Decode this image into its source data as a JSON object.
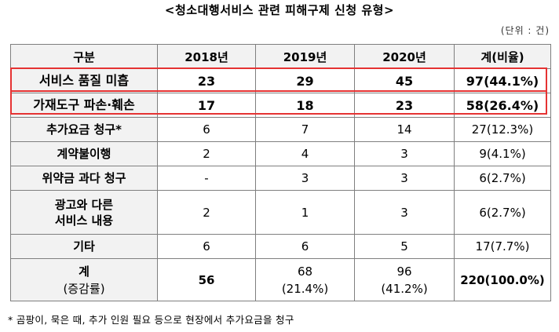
{
  "title": "<청소대행서비스 관련 피해구제 신청 유형>",
  "unit": "(단위 : 건)",
  "table": {
    "headers": [
      "구분",
      "2018년",
      "2019년",
      "2020년",
      "계(비율)"
    ],
    "rows": [
      {
        "label": "서비스 품질 미흡",
        "v2018": "23",
        "v2019": "29",
        "v2020": "45",
        "total": "97(44.1%)"
      },
      {
        "label": "가재도구 파손·훼손",
        "v2018": "17",
        "v2019": "18",
        "v2020": "23",
        "total": "58(26.4%)"
      },
      {
        "label": "추가요금 청구*",
        "v2018": "6",
        "v2019": "7",
        "v2020": "14",
        "total": "27(12.3%)"
      },
      {
        "label": "계약불이행",
        "v2018": "2",
        "v2019": "4",
        "v2020": "3",
        "total": "9(4.1%)"
      },
      {
        "label": "위약금 과다 청구",
        "v2018": "-",
        "v2019": "3",
        "v2020": "3",
        "total": "6(2.7%)"
      },
      {
        "label_line1": "광고와 다른",
        "label_line2": "서비스 내용",
        "v2018": "2",
        "v2019": "1",
        "v2020": "3",
        "total": "6(2.7%)"
      },
      {
        "label": "기타",
        "v2018": "6",
        "v2019": "6",
        "v2020": "5",
        "total": "17(7.7%)"
      }
    ],
    "total_row": {
      "label_line1": "계",
      "label_line2": "(증감률)",
      "v2018": "56",
      "v2019": "68",
      "v2019_rate": "(21.4%)",
      "v2020": "96",
      "v2020_rate": "(41.2%)",
      "total": "220(100.0%)"
    }
  },
  "footnote": "* 곰팡이, 묵은 때, 추가 인원 필요 등으로 현장에서 추가요금을 청구",
  "colors": {
    "highlight_border": "#e53333",
    "header_bg": "#f2f2f2"
  }
}
